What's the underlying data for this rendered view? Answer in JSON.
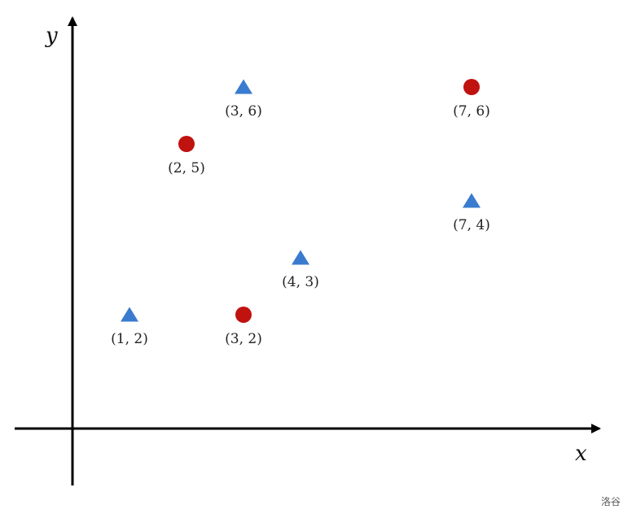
{
  "axes": {
    "x_label": "x",
    "y_label": "y"
  },
  "colors": {
    "circle": "#c0120f",
    "triangle": "#3a7bcf",
    "axis": "#000000"
  },
  "points": [
    {
      "shape": "triangle",
      "x": 1,
      "y": 2,
      "label": "(1, 2)"
    },
    {
      "shape": "circle",
      "x": 2,
      "y": 5,
      "label": "(2, 5)"
    },
    {
      "shape": "triangle",
      "x": 3,
      "y": 6,
      "label": "(3, 6)"
    },
    {
      "shape": "circle",
      "x": 3,
      "y": 2,
      "label": "(3, 2)"
    },
    {
      "shape": "triangle",
      "x": 4,
      "y": 3,
      "label": "(4, 3)"
    },
    {
      "shape": "circle",
      "x": 7,
      "y": 6,
      "label": "(7, 6)"
    },
    {
      "shape": "triangle",
      "x": 7,
      "y": 4,
      "label": "(7, 4)"
    }
  ],
  "watermark": "洛谷"
}
